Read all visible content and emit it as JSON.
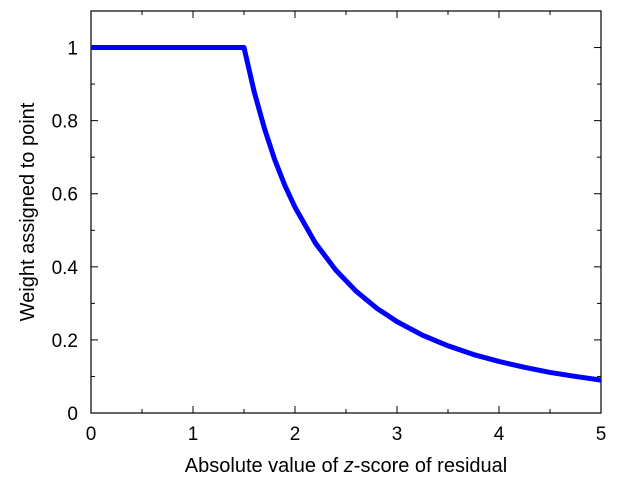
{
  "chart_data": {
    "type": "line",
    "title": "",
    "xlabel_parts": [
      "Absolute value of ",
      "z",
      "-score of residual"
    ],
    "ylabel": "Weight assigned to point",
    "xlim": [
      0,
      5
    ],
    "ylim": [
      0,
      1.1
    ],
    "xticks": [
      0,
      1,
      2,
      3,
      4,
      5
    ],
    "xtick_labels": [
      "0",
      "1",
      "2",
      "3",
      "4",
      "5"
    ],
    "yticks": [
      0,
      0.2,
      0.4,
      0.6,
      0.8,
      1
    ],
    "ytick_labels": [
      "0",
      "0.2",
      "0.4",
      "0.6",
      "0.8",
      "1"
    ],
    "grid": false,
    "legend": false,
    "series": [
      {
        "color": "#0000ff",
        "x": [
          0,
          0.5,
          1.0,
          1.5,
          1.6,
          1.7,
          1.8,
          1.9,
          2.0,
          2.2,
          2.4,
          2.6,
          2.8,
          3.0,
          3.25,
          3.5,
          3.75,
          4.0,
          4.25,
          4.5,
          4.75,
          5.0
        ],
        "y": [
          1,
          1,
          1,
          1,
          0.879,
          0.779,
          0.694,
          0.623,
          0.563,
          0.465,
          0.391,
          0.333,
          0.287,
          0.25,
          0.213,
          0.184,
          0.16,
          0.141,
          0.125,
          0.111,
          0.1,
          0.09
        ]
      }
    ]
  }
}
